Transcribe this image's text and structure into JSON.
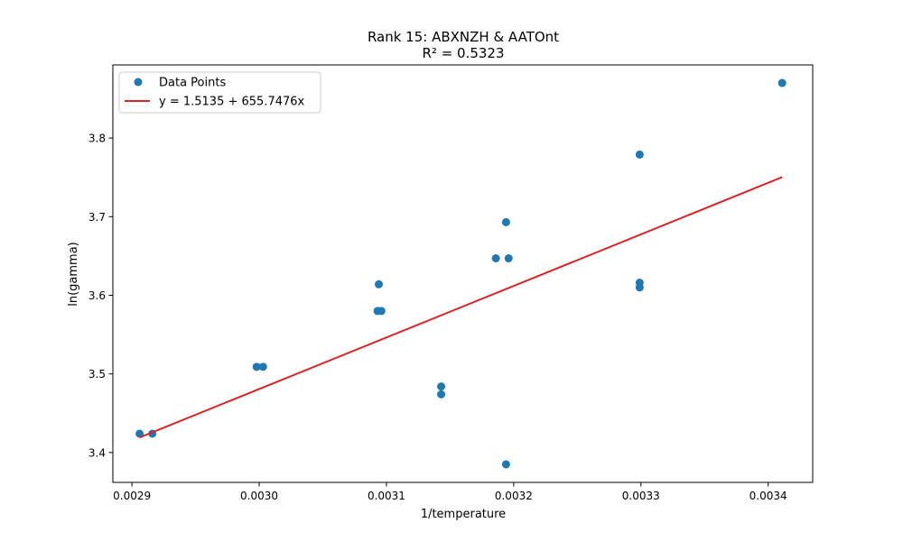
{
  "chart_data": {
    "type": "scatter",
    "title": "Rank 15: ABXNZH & AATOnt",
    "subtitle": "R² = 0.5323",
    "xlabel": "1/temperature",
    "ylabel": "ln(gamma)",
    "xlim": [
      0.002885,
      0.003435
    ],
    "ylim": [
      3.362,
      3.893
    ],
    "xticks": [
      {
        "value": 0.0029,
        "label": "0.0029"
      },
      {
        "value": 0.003,
        "label": "0.0030"
      },
      {
        "value": 0.0031,
        "label": "0.0031"
      },
      {
        "value": 0.0032,
        "label": "0.0032"
      },
      {
        "value": 0.0033,
        "label": "0.0033"
      },
      {
        "value": 0.0034,
        "label": "0.0034"
      }
    ],
    "yticks": [
      {
        "value": 3.4,
        "label": "3.4"
      },
      {
        "value": 3.5,
        "label": "3.5"
      },
      {
        "value": 3.6,
        "label": "3.6"
      },
      {
        "value": 3.7,
        "label": "3.7"
      },
      {
        "value": 3.8,
        "label": "3.8"
      }
    ],
    "grid": false,
    "legend_position": "top-left",
    "series": [
      {
        "name": "Data Points",
        "color": "#1f77b4",
        "marker": "circle",
        "points": [
          {
            "x": 0.002906,
            "y": 3.424
          },
          {
            "x": 0.002916,
            "y": 3.424
          },
          {
            "x": 0.002998,
            "y": 3.509
          },
          {
            "x": 0.003003,
            "y": 3.509
          },
          {
            "x": 0.003093,
            "y": 3.58
          },
          {
            "x": 0.003096,
            "y": 3.58
          },
          {
            "x": 0.003094,
            "y": 3.614
          },
          {
            "x": 0.003143,
            "y": 3.484
          },
          {
            "x": 0.003143,
            "y": 3.474
          },
          {
            "x": 0.003186,
            "y": 3.647
          },
          {
            "x": 0.003194,
            "y": 3.693
          },
          {
            "x": 0.003196,
            "y": 3.647
          },
          {
            "x": 0.003194,
            "y": 3.385
          },
          {
            "x": 0.003299,
            "y": 3.779
          },
          {
            "x": 0.003299,
            "y": 3.616
          },
          {
            "x": 0.003299,
            "y": 3.61
          },
          {
            "x": 0.003411,
            "y": 3.87
          }
        ]
      },
      {
        "name": "y = 1.5135 + 655.7476x",
        "color": "#d62728",
        "type": "line",
        "intercept": 1.5135,
        "slope": 655.7476,
        "x_range": [
          0.002906,
          0.003411
        ]
      }
    ]
  }
}
